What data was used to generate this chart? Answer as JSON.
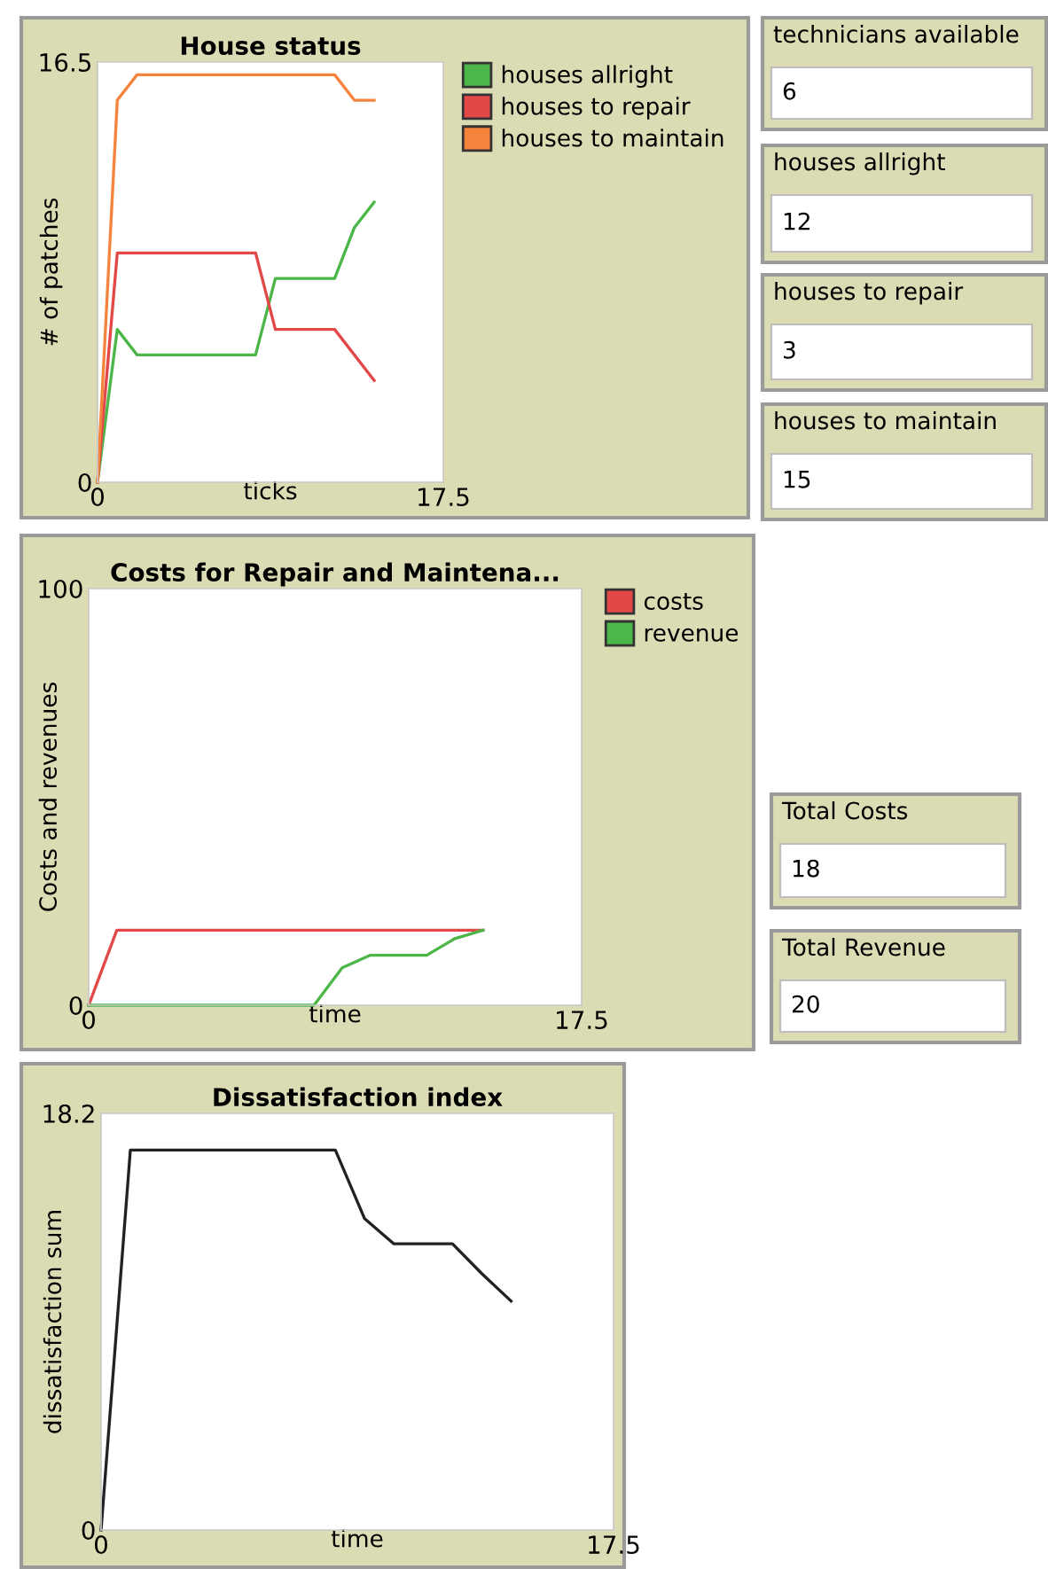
{
  "chart_data": [
    {
      "type": "line",
      "title": "House status",
      "xlabel": "ticks",
      "ylabel": "# of patches",
      "xlim": [
        0,
        17.5
      ],
      "ylim": [
        0,
        16.5
      ],
      "xticks": [
        0,
        17.5
      ],
      "yticks": [
        0,
        16.5
      ],
      "grid": false,
      "legend": "right",
      "series": [
        {
          "name": "houses allright",
          "color": "#4cb648",
          "x": [
            0,
            1,
            2,
            8,
            9,
            12,
            13,
            14
          ],
          "values": [
            0,
            6,
            5,
            5,
            8,
            8,
            10,
            11
          ]
        },
        {
          "name": "houses to repair",
          "color": "#e34848",
          "x": [
            0,
            1,
            8,
            9,
            12,
            14
          ],
          "values": [
            0,
            9,
            9,
            6,
            6,
            4
          ]
        },
        {
          "name": "houses to maintain",
          "color": "#f4843c",
          "x": [
            0,
            1,
            2,
            12,
            13,
            14
          ],
          "values": [
            0,
            15,
            16,
            16,
            15,
            15
          ]
        }
      ]
    },
    {
      "type": "other",
      "annotations": [
        "technicians available",
        "6",
        "houses allright",
        "12",
        "houses to repair",
        "3",
        "houses to maintain",
        "15"
      ]
    },
    {
      "type": "line",
      "title": "Costs for Repair and Maintena...",
      "xlabel": "time",
      "ylabel": "Costs and revenues",
      "xlim": [
        0,
        17.5
      ],
      "ylim": [
        0,
        100
      ],
      "xticks": [
        0,
        17.5
      ],
      "yticks": [
        0,
        100
      ],
      "grid": false,
      "legend": "right",
      "series": [
        {
          "name": "costs",
          "color": "#e34848",
          "x": [
            0,
            1,
            14
          ],
          "values": [
            0,
            18,
            18
          ]
        },
        {
          "name": "revenue",
          "color": "#4cb648",
          "x": [
            0,
            8,
            9,
            10,
            12,
            13,
            14
          ],
          "values": [
            0,
            0,
            9,
            12,
            12,
            16,
            18
          ]
        }
      ]
    },
    {
      "type": "other",
      "annotations": [
        "Total Costs",
        "18",
        "Total Revenue",
        "20"
      ]
    },
    {
      "type": "line",
      "title": "Dissatisfaction index",
      "xlabel": "time",
      "ylabel": "dissatisfaction sum",
      "xlim": [
        0,
        17.5
      ],
      "ylim": [
        0,
        18.2
      ],
      "xticks": [
        0,
        17.5
      ],
      "yticks": [
        0,
        18.2
      ],
      "grid": false,
      "legend": false,
      "series": [
        {
          "color": "#222222",
          "x": [
            0,
            1,
            8,
            9,
            10,
            12,
            13,
            14
          ],
          "values": [
            0,
            16.6,
            16.6,
            13.6,
            12.5,
            12.5,
            11.2,
            10.0
          ]
        }
      ]
    }
  ]
}
